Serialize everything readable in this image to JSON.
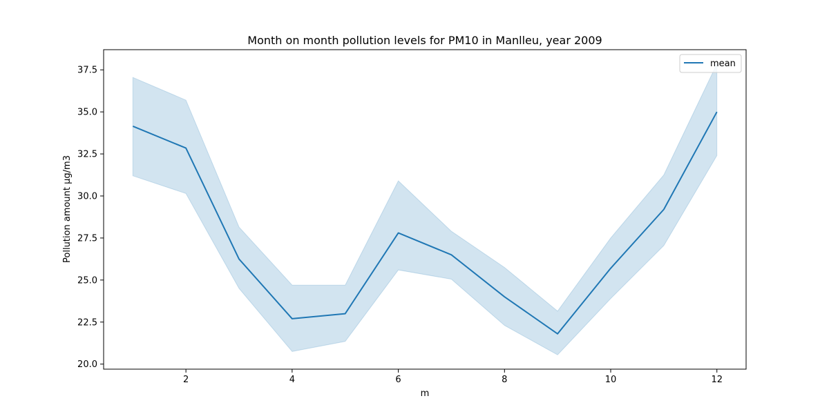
{
  "chart_data": {
    "type": "line",
    "title": "Month on month pollution levels for PM10 in Manlleu, year 2009",
    "xlabel": "m",
    "ylabel": "Pollution amount μg/m3",
    "x": [
      1,
      2,
      3,
      4,
      5,
      6,
      7,
      8,
      9,
      10,
      11,
      12
    ],
    "xlim": [
      0.45,
      12.55
    ],
    "ylim": [
      19.7,
      38.7
    ],
    "xticks": [
      2,
      4,
      6,
      8,
      10,
      12
    ],
    "xtick_labels": [
      "2",
      "4",
      "6",
      "8",
      "10",
      "12"
    ],
    "yticks": [
      20.0,
      22.5,
      25.0,
      27.5,
      30.0,
      32.5,
      35.0,
      37.5
    ],
    "ytick_labels": [
      "20.0",
      "22.5",
      "25.0",
      "27.5",
      "30.0",
      "32.5",
      "35.0",
      "37.5"
    ],
    "grid": false,
    "legend_position": "top-right",
    "series": [
      {
        "name": "mean",
        "color": "#1f77b4",
        "values": [
          34.15,
          32.85,
          26.25,
          22.7,
          23.0,
          27.8,
          26.5,
          24.0,
          21.8,
          25.7,
          29.2,
          35.0
        ],
        "ci_lower": [
          31.2,
          30.15,
          24.5,
          20.75,
          21.35,
          25.6,
          25.05,
          22.3,
          20.55,
          23.9,
          27.05,
          32.4
        ],
        "ci_upper": [
          37.05,
          35.7,
          28.15,
          24.7,
          24.7,
          30.9,
          27.9,
          25.75,
          23.15,
          27.5,
          31.25,
          37.85
        ]
      }
    ]
  }
}
